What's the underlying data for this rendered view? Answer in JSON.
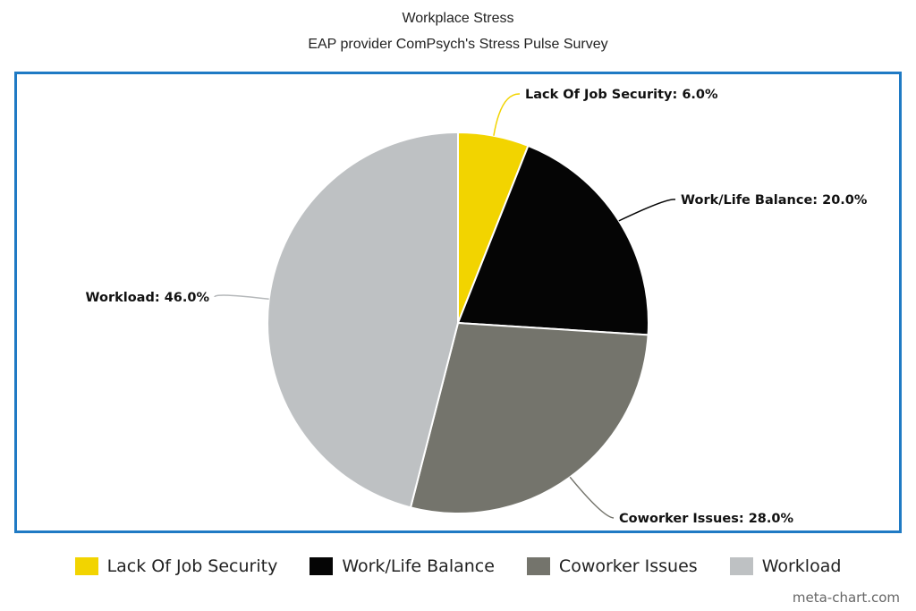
{
  "chart_data": {
    "type": "pie",
    "title": "Workplace Stress",
    "subtitle": "EAP provider ComPsych's Stress Pulse Survey",
    "slices": [
      {
        "name": "Lack Of Job Security",
        "value": 6.0,
        "label": "Lack Of Job Security: 6.0%",
        "color": "#f2d400"
      },
      {
        "name": "Work/Life Balance",
        "value": 20.0,
        "label": "Work/Life Balance: 20.0%",
        "color": "#050505"
      },
      {
        "name": "Coworker Issues",
        "value": 28.0,
        "label": "Coworker Issues: 28.0%",
        "color": "#74746c"
      },
      {
        "name": "Workload",
        "value": 46.0,
        "label": "Workload: 46.0%",
        "color": "#bec1c3"
      }
    ],
    "legend": {
      "placement": "bottom"
    },
    "frame_color": "#1f7ac4"
  },
  "credit": "meta-chart.com"
}
